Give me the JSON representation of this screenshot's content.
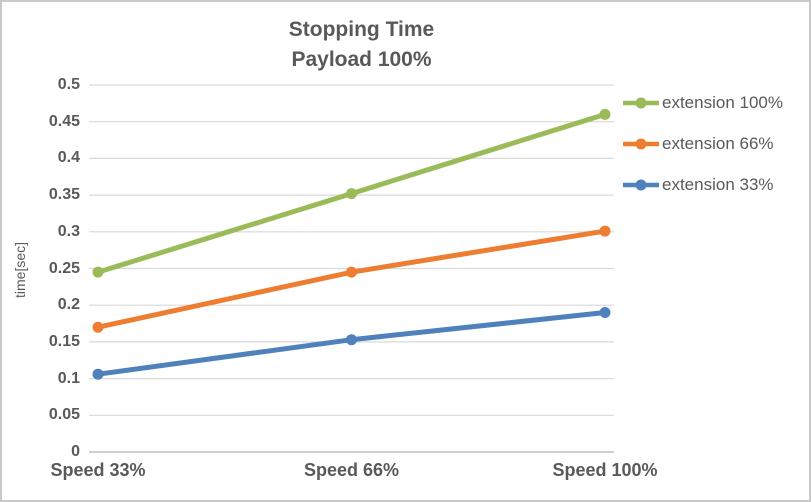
{
  "chart_data": {
    "type": "line",
    "title_line1": "Stopping Time",
    "title_line2": "Payload 100%",
    "ylabel": "time[sec]",
    "xlabel": "",
    "ylim": [
      0,
      0.5
    ],
    "ytick_step": 0.05,
    "yticks": [
      "0",
      "0.05",
      "0.1",
      "0.15",
      "0.2",
      "0.25",
      "0.3",
      "0.35",
      "0.4",
      "0.45",
      "0.5"
    ],
    "categories": [
      "Speed 33%",
      "Speed 66%",
      "Speed 100%"
    ],
    "series": [
      {
        "name": "extension 100%",
        "color": "#9bbb59",
        "values": [
          0.245,
          0.352,
          0.46
        ]
      },
      {
        "name": "extension 66%",
        "color": "#ed7d31",
        "values": [
          0.17,
          0.245,
          0.301
        ]
      },
      {
        "name": "extension 33%",
        "color": "#4f81bd",
        "values": [
          0.106,
          0.153,
          0.19
        ]
      }
    ],
    "legend_position": "right",
    "grid": true,
    "gridline_color": "#d9d9d9",
    "axis_line_color": "#bfbfbf",
    "text_color": "#595959"
  }
}
